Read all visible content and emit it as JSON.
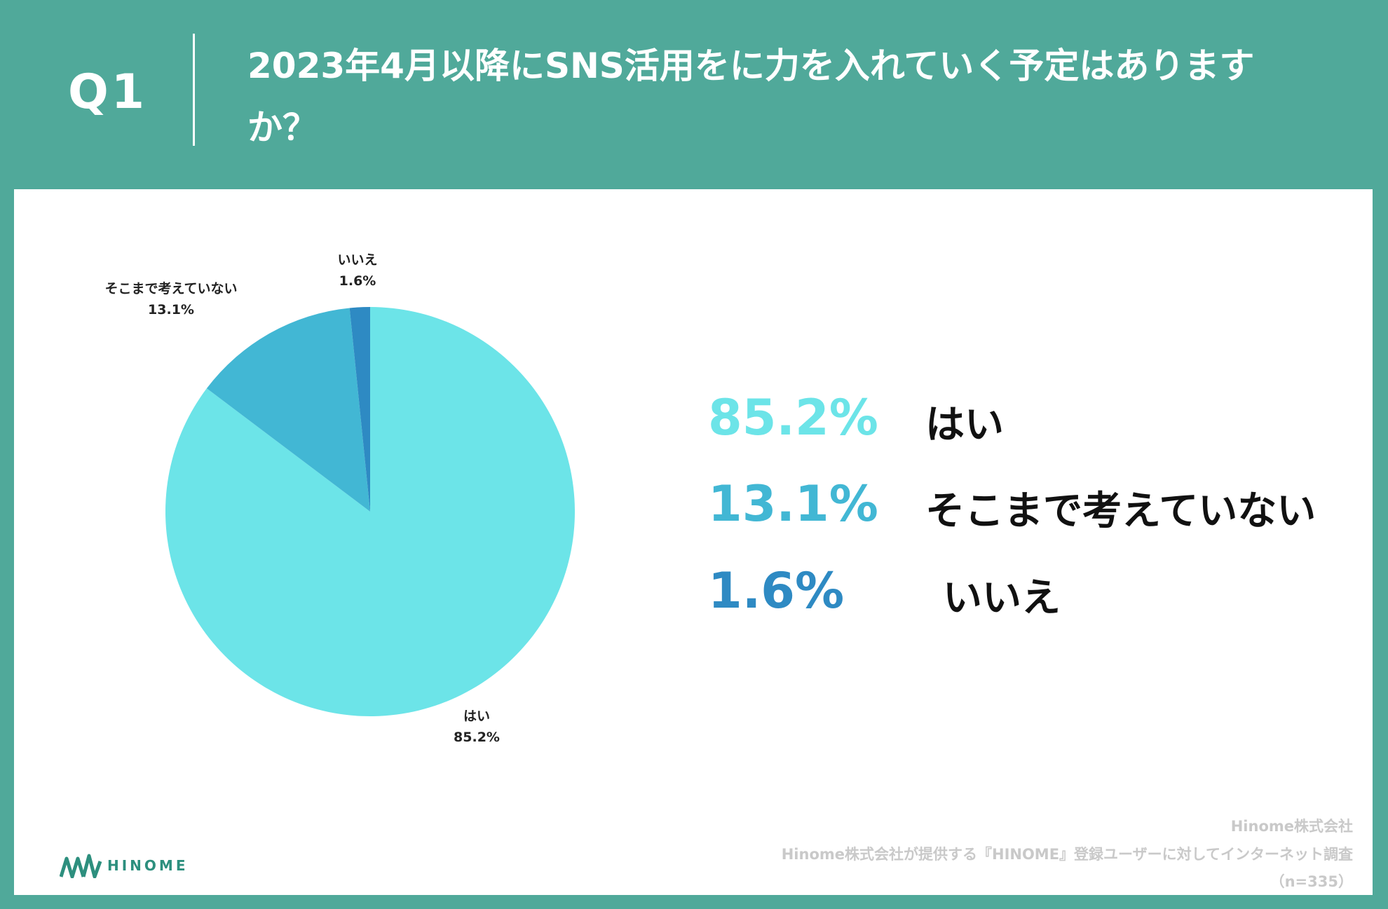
{
  "header": {
    "q_label": "Q1",
    "title": "2023年4月以降にSNS活用をに力を入れていく予定はありますか？"
  },
  "colors": {
    "background": "#50a99a",
    "card": "#ffffff",
    "slice_yes": "#6ce4e8",
    "slice_not_considered": "#42b7d4",
    "slice_no": "#2e8ac3"
  },
  "chart_data": {
    "type": "pie",
    "title": "2023年4月以降にSNS活用をに力を入れていく予定はありますか？",
    "slices": [
      {
        "label": "はい",
        "value": 85.2,
        "display": "85.2%",
        "color": "#6ce4e8"
      },
      {
        "label": "そこまで考えていない",
        "value": 13.1,
        "display": "13.1%",
        "color": "#42b7d4"
      },
      {
        "label": "いいえ",
        "value": 1.6,
        "display": "1.6%",
        "color": "#2e8ac3"
      }
    ]
  },
  "legend": [
    {
      "value": "85.2%",
      "label": "はい",
      "color": "#6ce4e8"
    },
    {
      "value": "13.1%",
      "label": "そこまで考えていない",
      "color": "#42b7d4"
    },
    {
      "value": "1.6%",
      "label": "いいえ",
      "color": "#2e8ac3"
    }
  ],
  "brand": {
    "name": "HINOME"
  },
  "footer": {
    "company": "Hinome株式会社",
    "source": "Hinome株式会社が提供する『HINOME』登録ユーザーに対してインターネット調査",
    "sample": "（n=335）"
  }
}
